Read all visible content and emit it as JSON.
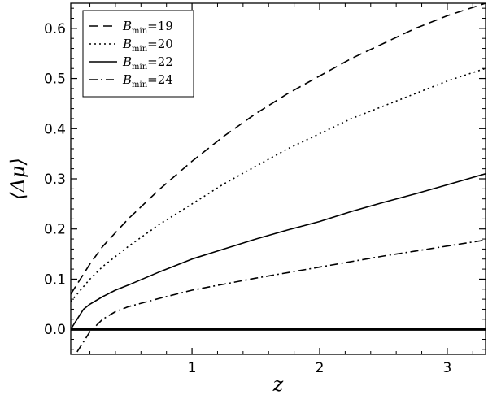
{
  "chart_data": {
    "type": "line",
    "title": "",
    "xlabel": "z",
    "ylabel": "⟨Δμ⟩",
    "xlim": [
      0.05,
      3.3
    ],
    "ylim": [
      -0.05,
      0.65
    ],
    "x_ticks": [
      1,
      2,
      3
    ],
    "x_tick_labels": [
      "1",
      "2",
      "3"
    ],
    "y_ticks": [
      0.0,
      0.1,
      0.2,
      0.3,
      0.4,
      0.5,
      0.6
    ],
    "y_tick_labels": [
      "0.0",
      "0.1",
      "0.2",
      "0.3",
      "0.4",
      "0.5",
      "0.6"
    ],
    "grid": false,
    "legend_position": "top-left",
    "reference_line": {
      "y": 0.0,
      "style": "solid-thick"
    },
    "series": [
      {
        "name": "B_min=19",
        "legend_var": "B",
        "legend_sub": "min",
        "legend_value": "=19",
        "style": "dashed",
        "x": [
          0.05,
          0.1,
          0.2,
          0.3,
          0.5,
          0.75,
          1.0,
          1.25,
          1.5,
          1.75,
          2.0,
          2.25,
          2.5,
          2.75,
          3.0,
          3.3
        ],
        "y": [
          0.07,
          0.09,
          0.13,
          0.165,
          0.22,
          0.28,
          0.335,
          0.385,
          0.43,
          0.47,
          0.505,
          0.54,
          0.57,
          0.6,
          0.625,
          0.65
        ]
      },
      {
        "name": "B_min=20",
        "legend_var": "B",
        "legend_sub": "min",
        "legend_value": "=20",
        "style": "dotted",
        "x": [
          0.05,
          0.1,
          0.2,
          0.3,
          0.5,
          0.75,
          1.0,
          1.25,
          1.5,
          1.75,
          2.0,
          2.25,
          2.5,
          2.75,
          3.0,
          3.3
        ],
        "y": [
          0.055,
          0.07,
          0.1,
          0.125,
          0.165,
          0.21,
          0.25,
          0.29,
          0.325,
          0.36,
          0.39,
          0.42,
          0.445,
          0.47,
          0.495,
          0.52
        ]
      },
      {
        "name": "B_min=22",
        "legend_var": "B",
        "legend_sub": "min",
        "legend_value": "=22",
        "style": "solid",
        "x": [
          0.05,
          0.1,
          0.15,
          0.2,
          0.3,
          0.4,
          0.5,
          0.75,
          1.0,
          1.25,
          1.5,
          1.75,
          2.0,
          2.25,
          2.5,
          2.75,
          3.0,
          3.3
        ],
        "y": [
          0.0,
          0.02,
          0.04,
          0.05,
          0.065,
          0.078,
          0.088,
          0.115,
          0.14,
          0.16,
          0.18,
          0.198,
          0.215,
          0.235,
          0.253,
          0.27,
          0.288,
          0.31
        ]
      },
      {
        "name": "B_min=24",
        "legend_var": "B",
        "legend_sub": "min",
        "legend_value": "=24",
        "style": "dashdot",
        "x": [
          0.1,
          0.15,
          0.2,
          0.3,
          0.4,
          0.5,
          0.75,
          1.0,
          1.25,
          1.5,
          1.75,
          2.0,
          2.25,
          2.5,
          2.75,
          3.0,
          3.3
        ],
        "y": [
          -0.045,
          -0.025,
          -0.005,
          0.02,
          0.035,
          0.045,
          0.062,
          0.078,
          0.09,
          0.102,
          0.113,
          0.124,
          0.135,
          0.146,
          0.156,
          0.166,
          0.178
        ]
      }
    ]
  }
}
